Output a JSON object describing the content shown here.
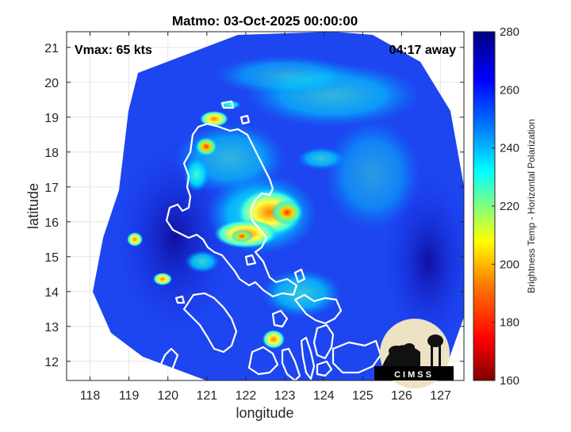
{
  "chart_data": {
    "type": "heatmap",
    "title": "Matmo: 03-Oct-2025 00:00:00",
    "xlabel": "longitude",
    "ylabel": "latitude",
    "xlim": [
      117.4,
      127.6
    ],
    "ylim": [
      11.45,
      21.45
    ],
    "xticks": [
      118,
      119,
      120,
      121,
      122,
      123,
      124,
      125,
      126,
      127
    ],
    "yticks": [
      12,
      13,
      14,
      15,
      16,
      17,
      18,
      19,
      20,
      21
    ],
    "grid": true,
    "annotations": {
      "top_left": "Vmax: 65 kts",
      "top_right": "04:17 away"
    },
    "colorbar": {
      "label": "Brightness Temp - Horizontal Polarization",
      "range": [
        160,
        280
      ],
      "ticks": [
        160,
        180,
        200,
        220,
        240,
        260,
        280
      ],
      "colormap": [
        "#800000",
        "#ff0000",
        "#ff8000",
        "#ffff00",
        "#80ff80",
        "#00ffff",
        "#0080ff",
        "#0000ff",
        "#000080"
      ]
    },
    "storm_center": {
      "lon": 122.7,
      "lat": 16.2
    },
    "warm_cores": [
      {
        "lon": 122.9,
        "lat": 16.1,
        "value": 178
      },
      {
        "lon": 121.9,
        "lat": 15.6,
        "value": 192
      },
      {
        "lon": 121.4,
        "lat": 18.2,
        "value": 200
      },
      {
        "lon": 119.8,
        "lat": 14.2,
        "value": 215
      },
      {
        "lon": 119.1,
        "lat": 15.4,
        "value": 215
      },
      {
        "lon": 122.5,
        "lat": 12.7,
        "value": 205
      }
    ]
  },
  "logo": {
    "text": "CIMSS"
  }
}
